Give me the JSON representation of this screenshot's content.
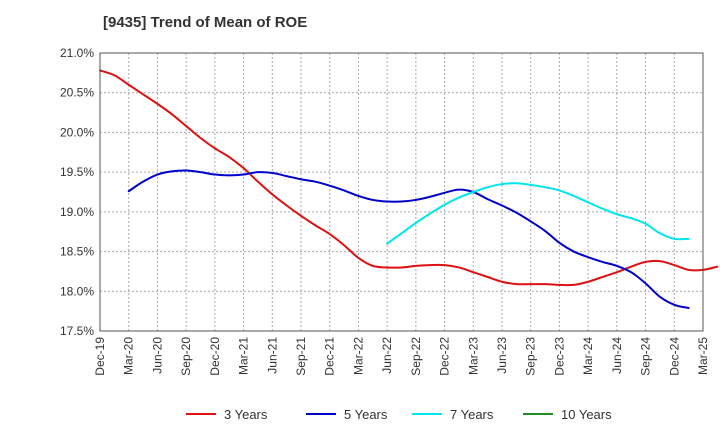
{
  "chart_data": {
    "type": "line",
    "title": "[9435]  Trend of Mean of ROE",
    "xlabel": "",
    "ylabel": "",
    "x_tick_labels": [
      "Dec-19",
      "Mar-20",
      "Jun-20",
      "Sep-20",
      "Dec-20",
      "Mar-21",
      "Jun-21",
      "Sep-21",
      "Dec-21",
      "Mar-22",
      "Jun-22",
      "Sep-22",
      "Dec-22",
      "Mar-23",
      "Jun-23",
      "Sep-23",
      "Dec-23",
      "Mar-24",
      "Jun-24",
      "Sep-24",
      "Dec-24",
      "Mar-25"
    ],
    "y_tick_labels": [
      "21.0%",
      "20.5%",
      "20.0%",
      "19.5%",
      "19.0%",
      "18.5%",
      "18.0%",
      "17.5%"
    ],
    "ylim": [
      17.5,
      21.0
    ],
    "y_ticks": [
      21.0,
      20.5,
      20.0,
      19.5,
      19.0,
      18.5,
      18.0,
      17.5
    ],
    "grid": true,
    "legend_position": "bottom",
    "series": [
      {
        "name": "3 Years",
        "color": "#dd1111",
        "values": [
          20.78,
          20.72,
          20.6,
          20.48,
          20.36,
          20.23,
          20.08,
          19.93,
          19.8,
          19.69,
          19.55,
          19.38,
          19.22,
          19.08,
          18.95,
          18.83,
          18.72,
          18.58,
          18.42,
          18.32,
          18.3,
          18.3,
          18.32,
          18.33,
          18.33,
          18.3,
          18.24,
          18.18,
          18.12,
          18.09,
          18.09,
          18.09,
          18.08,
          18.08,
          18.12,
          18.18,
          18.24,
          18.31,
          18.37,
          18.38,
          18.33,
          18.27,
          18.27,
          18.31
        ]
      },
      {
        "name": "5 Years",
        "color": "#0000cc",
        "values": [
          null,
          null,
          19.26,
          19.38,
          19.47,
          19.51,
          19.52,
          19.5,
          19.47,
          19.46,
          19.47,
          19.5,
          19.49,
          19.45,
          19.41,
          19.38,
          19.33,
          19.27,
          19.2,
          19.15,
          19.13,
          19.13,
          19.15,
          19.19,
          19.24,
          19.28,
          19.25,
          19.16,
          19.08,
          18.99,
          18.88,
          18.76,
          18.61,
          18.5,
          18.43,
          18.37,
          18.32,
          18.24,
          18.1,
          17.93,
          17.83,
          17.79
        ]
      },
      {
        "name": "7 Years",
        "color": "#00e5ee",
        "values": [
          null,
          null,
          null,
          null,
          null,
          null,
          null,
          null,
          null,
          null,
          null,
          null,
          null,
          null,
          null,
          null,
          null,
          null,
          null,
          null,
          18.6,
          18.73,
          18.86,
          18.98,
          19.09,
          19.18,
          19.25,
          19.31,
          19.35,
          19.36,
          19.34,
          19.31,
          19.27,
          19.2,
          19.12,
          19.04,
          18.97,
          18.92,
          18.85,
          18.73,
          18.66,
          18.66
        ]
      },
      {
        "name": "10 Years",
        "color": "#228b22",
        "values": []
      }
    ]
  }
}
